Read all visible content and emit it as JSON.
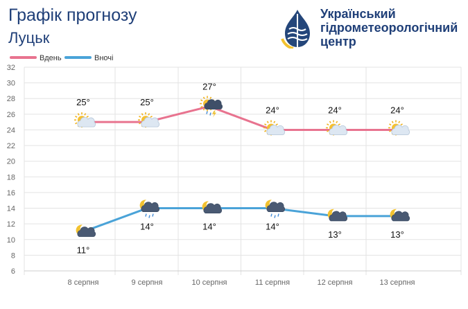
{
  "header": {
    "title": "Графік прогнозу",
    "city": "Луцьк",
    "org_line1": "Український",
    "org_line2": "гідрометеорологічний",
    "org_line3": "центр"
  },
  "colors": {
    "day": "#e8738f",
    "night": "#4aa3d8",
    "title": "#1f3f78",
    "logo_blue": "#24467a",
    "logo_yellow": "#f2c230"
  },
  "chart_data": {
    "type": "line",
    "title": "",
    "xlabel": "",
    "ylabel": "",
    "categories": [
      "8 серпня",
      "9 серпня",
      "10 серпня",
      "11 серпня",
      "12 серпня",
      "13 серпня"
    ],
    "yticks": [
      6,
      8,
      10,
      12,
      14,
      16,
      18,
      20,
      22,
      24,
      26,
      28,
      30,
      32
    ],
    "ylim": [
      6,
      32
    ],
    "grid": true,
    "legend_position": "top-left",
    "series": [
      {
        "name": "Вдень",
        "values": [
          25,
          25,
          27,
          24,
          24,
          24
        ],
        "labels": [
          "25°",
          "25°",
          "27°",
          "24°",
          "24°",
          "24°"
        ],
        "icons": [
          "sun-cloud-icon",
          "sun-cloud-icon",
          "sun-thunderstorm-icon",
          "sun-cloud-icon",
          "sun-cloud-icon",
          "sun-cloud-icon"
        ]
      },
      {
        "name": "Вночі",
        "values": [
          11,
          14,
          14,
          14,
          13,
          13
        ],
        "labels": [
          "11°",
          "14°",
          "14°",
          "14°",
          "13°",
          "13°"
        ],
        "icons": [
          "moon-cloud-icon",
          "moon-rain-icon",
          "moon-cloud-icon",
          "moon-rain-icon",
          "moon-cloud-icon",
          "moon-cloud-icon"
        ]
      }
    ]
  }
}
